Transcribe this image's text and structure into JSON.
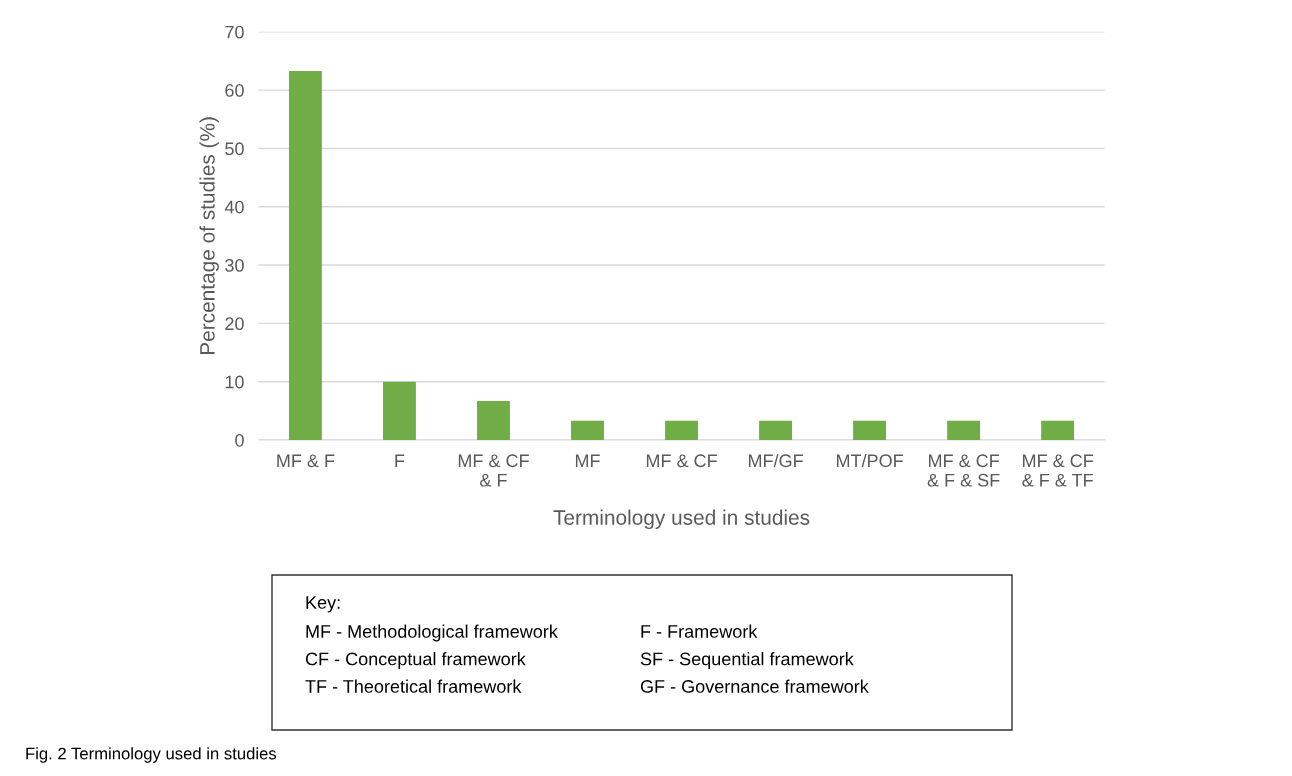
{
  "chart_data": {
    "type": "bar",
    "xlabel": "Terminology used in studies",
    "ylabel": "Percentage of studies (%)",
    "categories": [
      "MF & F",
      "F",
      "MF & CF & F",
      "MF",
      "MF & CF",
      "MF/GF",
      "MT/POF",
      "MF & CF & F & SF",
      "MF & CF & F & TF"
    ],
    "values": [
      63.3,
      10,
      6.7,
      3.3,
      3.3,
      3.3,
      3.3,
      3.3,
      3.3
    ],
    "color": "#70ad47",
    "ylim": [
      0,
      70
    ],
    "yticks": [
      0,
      10,
      20,
      30,
      40,
      50,
      60,
      70
    ],
    "grid": "y",
    "legend": false,
    "annotations": [
      "Key:",
      "MF - Methodological framework",
      "F - Framework",
      "CF - Conceptual framework",
      "SF - Sequential framework",
      "TF - Theoretical framework",
      "GF - Governance framework",
      "Fig. 2 Terminology used in studies"
    ]
  }
}
